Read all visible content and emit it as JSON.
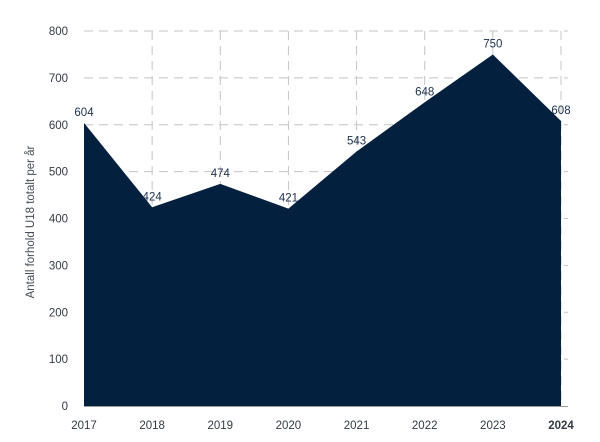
{
  "chart_data": {
    "type": "area",
    "x": [
      "2017",
      "2018",
      "2019",
      "2020",
      "2021",
      "2022",
      "2023",
      "2024"
    ],
    "values": [
      604,
      424,
      474,
      421,
      543,
      648,
      750,
      608
    ],
    "data_labels": [
      "604",
      "424",
      "474",
      "421",
      "543",
      "648",
      "750",
      "608"
    ],
    "ylabel": "Antall forhold U18 totalt per år",
    "xlabel": "",
    "ylim": [
      0,
      800
    ],
    "yticks": [
      0,
      100,
      200,
      300,
      400,
      500,
      600,
      700,
      800
    ],
    "ytick_labels": [
      "0",
      "100",
      "200",
      "300",
      "400",
      "500",
      "600",
      "700",
      "800"
    ],
    "bold_category": "2024",
    "grid": "dashed",
    "fill_color": "#03203e",
    "grid_color": "#c4c4c4",
    "label_color": "#1b2f4d"
  }
}
